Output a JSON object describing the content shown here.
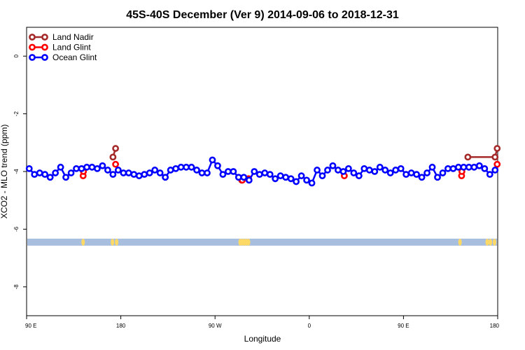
{
  "chart_data": {
    "type": "line",
    "title": "45S-40S December (Ver 9)   2014-09-06 to 2018-12-31",
    "xlabel": "Longitude",
    "ylabel": "XCO2 - MLO trend (ppm)",
    "xlim": [
      90,
      540
    ],
    "ylim": [
      -9,
      1
    ],
    "x_ticks": [
      {
        "value": 90,
        "label": "90 E"
      },
      {
        "value": 180,
        "label": "180"
      },
      {
        "value": 270,
        "label": "90 W"
      },
      {
        "value": 360,
        "label": "0"
      },
      {
        "value": 450,
        "label": "90 E"
      },
      {
        "value": 540,
        "label": "180"
      }
    ],
    "y_ticks": [
      {
        "value": 0,
        "label": "0"
      },
      {
        "value": -2,
        "label": "-2"
      },
      {
        "value": -4,
        "label": "-4"
      },
      {
        "value": -6,
        "label": "-6"
      },
      {
        "value": -8,
        "label": "-8"
      }
    ],
    "legend_position": "top-left",
    "series": [
      {
        "name": "Land Nadir",
        "color": "#a52a2a",
        "x": [
          172.5,
          175,
          295.5,
          511.5,
          537.5,
          539.5
        ],
        "y": [
          -3.5,
          -3.2,
          -4.3,
          -3.5,
          -3.5,
          -3.2
        ]
      },
      {
        "name": "Land Glint",
        "color": "#ff0000",
        "x": [
          144,
          144.3,
          175,
          296,
          302,
          393.5,
          505.5,
          505.8,
          539.5
        ],
        "y": [
          -4.15,
          -4.0,
          -3.75,
          -4.3,
          -4.25,
          -4.15,
          -4.15,
          -4.0,
          -3.75
        ]
      },
      {
        "name": "Ocean Glint",
        "color": "#0000ff",
        "x": [
          92.5,
          97.5,
          102.5,
          107.5,
          112.5,
          117.5,
          122.5,
          127.5,
          132.5,
          137.5,
          142.5,
          147.5,
          152.5,
          157.5,
          162.5,
          167.5,
          172.5,
          177.5,
          182.5,
          187.5,
          192.5,
          197.5,
          202.5,
          207.5,
          212.5,
          217.5,
          222.5,
          227.5,
          232.5,
          237.5,
          242.5,
          247.5,
          252.5,
          257.5,
          262.5,
          267.5,
          272.5,
          277.5,
          282.5,
          287.5,
          292.5,
          297.5,
          302.5,
          307.5,
          312.5,
          317.5,
          322.5,
          327.5,
          332.5,
          337.5,
          342.5,
          347.5,
          352.5,
          357.5,
          362.5,
          367.5,
          372.5,
          377.5,
          382.5,
          387.5,
          392.5,
          397.5,
          402.5,
          407.5,
          412.5,
          417.5,
          422.5,
          427.5,
          432.5,
          437.5,
          442.5,
          447.5,
          452.5,
          457.5,
          462.5,
          467.5,
          472.5,
          477.5,
          482.5,
          487.5,
          492.5,
          497.5,
          502.5,
          507.5,
          512.5,
          517.5,
          522.5,
          527.5,
          532.5,
          537.5
        ],
        "y": [
          -3.9,
          -4.1,
          -4.05,
          -4.1,
          -4.2,
          -4.05,
          -3.85,
          -4.2,
          -4.05,
          -3.9,
          -3.9,
          -3.85,
          -3.85,
          -3.9,
          -3.8,
          -3.95,
          -4.1,
          -3.95,
          -4.05,
          -4.05,
          -4.1,
          -4.15,
          -4.1,
          -4.05,
          -3.95,
          -4.05,
          -4.2,
          -3.95,
          -3.9,
          -3.85,
          -3.85,
          -3.85,
          -3.95,
          -4.05,
          -4.05,
          -3.6,
          -3.8,
          -4.1,
          -4.0,
          -4.0,
          -4.2,
          -4.2,
          -4.3,
          -4.0,
          -4.1,
          -4.05,
          -4.1,
          -4.25,
          -4.15,
          -4.2,
          -4.25,
          -4.35,
          -4.15,
          -4.3,
          -4.4,
          -3.95,
          -4.15,
          -3.95,
          -3.8,
          -3.95,
          -4.0,
          -3.9,
          -4.05,
          -4.15,
          -3.9,
          -3.95,
          -4.0,
          -3.85,
          -3.95,
          -4.05,
          -3.95,
          -3.9,
          -4.1,
          -4.05,
          -4.1,
          -4.2,
          -4.05,
          -3.85,
          -4.2,
          -4.05,
          -3.9,
          -3.9,
          -3.85,
          -3.85,
          -3.85,
          -3.85,
          -3.8,
          -3.9,
          -4.1,
          -3.95
        ]
      }
    ],
    "band": {
      "y": -6.45,
      "color": "#a7bedf",
      "marker_color": "#ffd966",
      "marker_x": [
        144,
        172,
        176,
        294,
        296,
        298,
        300,
        302,
        504,
        530,
        533,
        537
      ]
    }
  }
}
